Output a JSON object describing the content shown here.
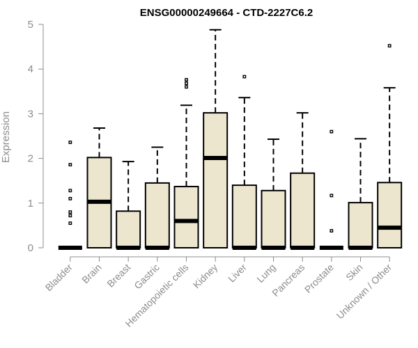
{
  "chart_data": {
    "type": "boxplot",
    "title": "ENSG00000249664 - CTD-2227C6.2",
    "xlabel": "",
    "ylabel": "Expression",
    "ylim": [
      0,
      5
    ],
    "yticks": [
      0,
      1,
      2,
      3,
      4,
      5
    ],
    "grid": false,
    "legend": "none",
    "box_fill": "#ede6cf",
    "box_stroke": "#000000",
    "axis_color": "#8c8c8c",
    "categories": [
      "Bladder",
      "Brain",
      "Breast",
      "Gastric",
      "Hematopoietic cells",
      "Kidney",
      "Liver",
      "Lung",
      "Pancreas",
      "Prostate",
      "Skin",
      "Unknown / Other"
    ],
    "boxes": [
      {
        "category": "Bladder",
        "whisker_low": 0,
        "q1": 0,
        "median": 0,
        "q3": 0,
        "whisker_high": 0,
        "outliers": [
          2.36,
          1.86,
          1.28,
          1.1,
          0.8,
          0.72,
          0.55
        ]
      },
      {
        "category": "Brain",
        "whisker_low": 0,
        "q1": 0,
        "median": 1.03,
        "q3": 2.02,
        "whisker_high": 2.68,
        "outliers": []
      },
      {
        "category": "Breast",
        "whisker_low": 0,
        "q1": 0,
        "median": 0,
        "q3": 0.82,
        "whisker_high": 1.93,
        "outliers": []
      },
      {
        "category": "Gastric",
        "whisker_low": 0,
        "q1": 0,
        "median": 0,
        "q3": 1.45,
        "whisker_high": 2.25,
        "outliers": []
      },
      {
        "category": "Hematopoietic cells",
        "whisker_low": 0,
        "q1": 0,
        "median": 0.6,
        "q3": 1.37,
        "whisker_high": 3.19,
        "outliers": [
          3.76,
          3.68,
          3.6
        ]
      },
      {
        "category": "Kidney",
        "whisker_low": 0,
        "q1": 0,
        "median": 2.01,
        "q3": 3.02,
        "whisker_high": 4.88,
        "outliers": []
      },
      {
        "category": "Liver",
        "whisker_low": 0,
        "q1": 0,
        "median": 0,
        "q3": 1.4,
        "whisker_high": 3.36,
        "outliers": [
          3.83
        ]
      },
      {
        "category": "Lung",
        "whisker_low": 0,
        "q1": 0,
        "median": 0,
        "q3": 1.28,
        "whisker_high": 2.43,
        "outliers": []
      },
      {
        "category": "Pancreas",
        "whisker_low": 0,
        "q1": 0,
        "median": 0,
        "q3": 1.67,
        "whisker_high": 3.02,
        "outliers": []
      },
      {
        "category": "Prostate",
        "whisker_low": 0,
        "q1": 0,
        "median": 0,
        "q3": 0,
        "whisker_high": 0,
        "outliers": [
          2.6,
          1.17,
          0.38
        ]
      },
      {
        "category": "Skin",
        "whisker_low": 0,
        "q1": 0,
        "median": 0,
        "q3": 1.01,
        "whisker_high": 2.44,
        "outliers": []
      },
      {
        "category": "Unknown / Other",
        "whisker_low": 0,
        "q1": 0,
        "median": 0.45,
        "q3": 1.46,
        "whisker_high": 3.58,
        "outliers": [
          4.52
        ]
      }
    ]
  }
}
